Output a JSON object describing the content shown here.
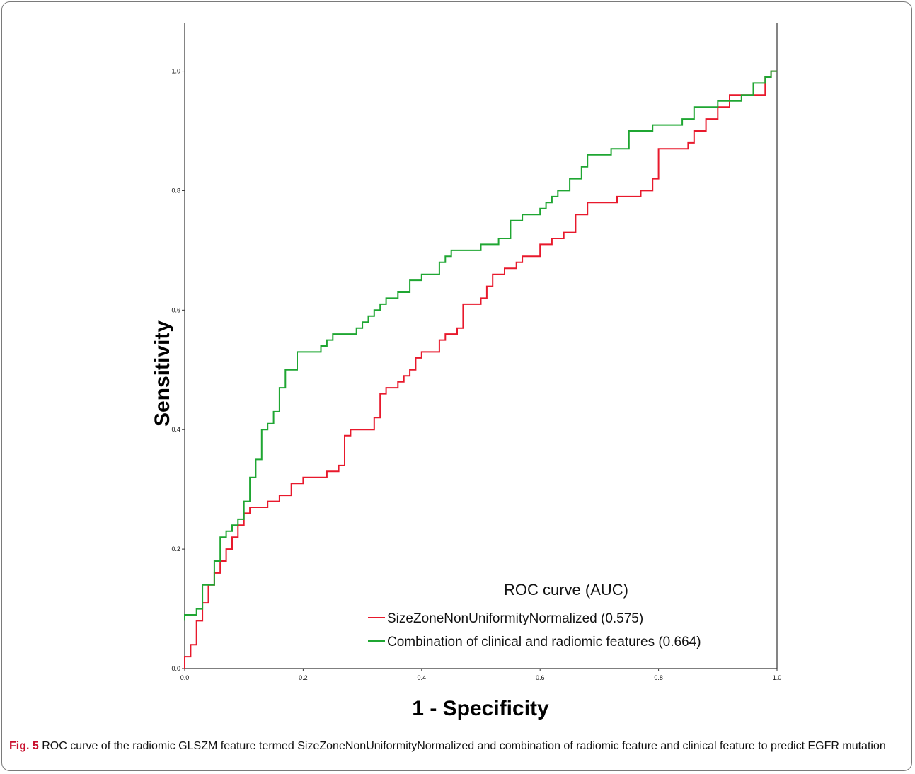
{
  "chart_data": {
    "type": "line",
    "xlabel": "1 - Specificity",
    "ylabel": "Sensitivity",
    "xlim": [
      0,
      1
    ],
    "ylim": [
      0,
      1.08
    ],
    "x_ticks": [
      "0.0",
      "0.2",
      "0.4",
      "0.6",
      "0.8",
      "1.0"
    ],
    "y_ticks": [
      "0.0",
      "0.2",
      "0.4",
      "0.6",
      "0.8",
      "1.0"
    ],
    "grid": false,
    "legend": {
      "title": "ROC curve (AUC)",
      "position": "bottom-right"
    },
    "series": [
      {
        "name": "SizeZoneNonUniformityNormalized (0.575)",
        "color": "#e8192c",
        "x": [
          0,
          0.01,
          0.02,
          0.03,
          0.04,
          0.05,
          0.06,
          0.07,
          0.08,
          0.09,
          0.1,
          0.11,
          0.12,
          0.14,
          0.16,
          0.18,
          0.2,
          0.22,
          0.24,
          0.26,
          0.27,
          0.28,
          0.31,
          0.32,
          0.33,
          0.34,
          0.36,
          0.37,
          0.38,
          0.39,
          0.4,
          0.41,
          0.43,
          0.44,
          0.46,
          0.47,
          0.5,
          0.51,
          0.52,
          0.54,
          0.56,
          0.57,
          0.6,
          0.62,
          0.64,
          0.66,
          0.68,
          0.7,
          0.73,
          0.75,
          0.77,
          0.79,
          0.8,
          0.81,
          0.85,
          0.86,
          0.88,
          0.9,
          0.92,
          0.95,
          0.98,
          0.99,
          1.0
        ],
        "y": [
          0,
          0.02,
          0.04,
          0.08,
          0.11,
          0.14,
          0.16,
          0.18,
          0.2,
          0.22,
          0.24,
          0.26,
          0.27,
          0.27,
          0.28,
          0.29,
          0.31,
          0.32,
          0.32,
          0.33,
          0.34,
          0.39,
          0.4,
          0.4,
          0.42,
          0.46,
          0.47,
          0.48,
          0.49,
          0.5,
          0.52,
          0.53,
          0.53,
          0.55,
          0.56,
          0.57,
          0.61,
          0.62,
          0.64,
          0.66,
          0.67,
          0.68,
          0.69,
          0.71,
          0.72,
          0.73,
          0.76,
          0.78,
          0.78,
          0.79,
          0.79,
          0.8,
          0.82,
          0.87,
          0.87,
          0.88,
          0.9,
          0.92,
          0.94,
          0.96,
          0.96,
          0.99,
          1.0
        ]
      },
      {
        "name": "Combination of clinical and radiomic features (0.664)",
        "color": "#1fa632",
        "x": [
          0,
          0.02,
          0.03,
          0.05,
          0.06,
          0.07,
          0.08,
          0.09,
          0.1,
          0.11,
          0.12,
          0.13,
          0.14,
          0.15,
          0.16,
          0.17,
          0.18,
          0.19,
          0.23,
          0.24,
          0.25,
          0.27,
          0.29,
          0.3,
          0.31,
          0.32,
          0.33,
          0.34,
          0.36,
          0.37,
          0.38,
          0.4,
          0.43,
          0.44,
          0.45,
          0.47,
          0.5,
          0.53,
          0.55,
          0.57,
          0.6,
          0.61,
          0.62,
          0.63,
          0.65,
          0.67,
          0.68,
          0.7,
          0.72,
          0.74,
          0.75,
          0.78,
          0.79,
          0.82,
          0.84,
          0.86,
          0.88,
          0.9,
          0.92,
          0.94,
          0.96,
          0.98,
          0.99,
          1.0
        ],
        "y": [
          0.08,
          0.09,
          0.1,
          0.14,
          0.18,
          0.22,
          0.23,
          0.24,
          0.25,
          0.28,
          0.32,
          0.35,
          0.4,
          0.41,
          0.43,
          0.47,
          0.5,
          0.5,
          0.53,
          0.54,
          0.55,
          0.56,
          0.56,
          0.57,
          0.58,
          0.59,
          0.6,
          0.61,
          0.62,
          0.63,
          0.63,
          0.65,
          0.66,
          0.68,
          0.69,
          0.7,
          0.7,
          0.71,
          0.72,
          0.75,
          0.76,
          0.77,
          0.78,
          0.79,
          0.8,
          0.82,
          0.84,
          0.86,
          0.86,
          0.87,
          0.87,
          0.9,
          0.9,
          0.91,
          0.91,
          0.92,
          0.94,
          0.94,
          0.95,
          0.95,
          0.96,
          0.98,
          0.99,
          1.0
        ]
      }
    ]
  },
  "caption": {
    "label": "Fig. 5",
    "text": " ROC curve of the radiomic GLSZM feature termed SizeZoneNonUniformityNormalized and combination of radiomic feature and clinical feature to predict EGFR mutation"
  }
}
